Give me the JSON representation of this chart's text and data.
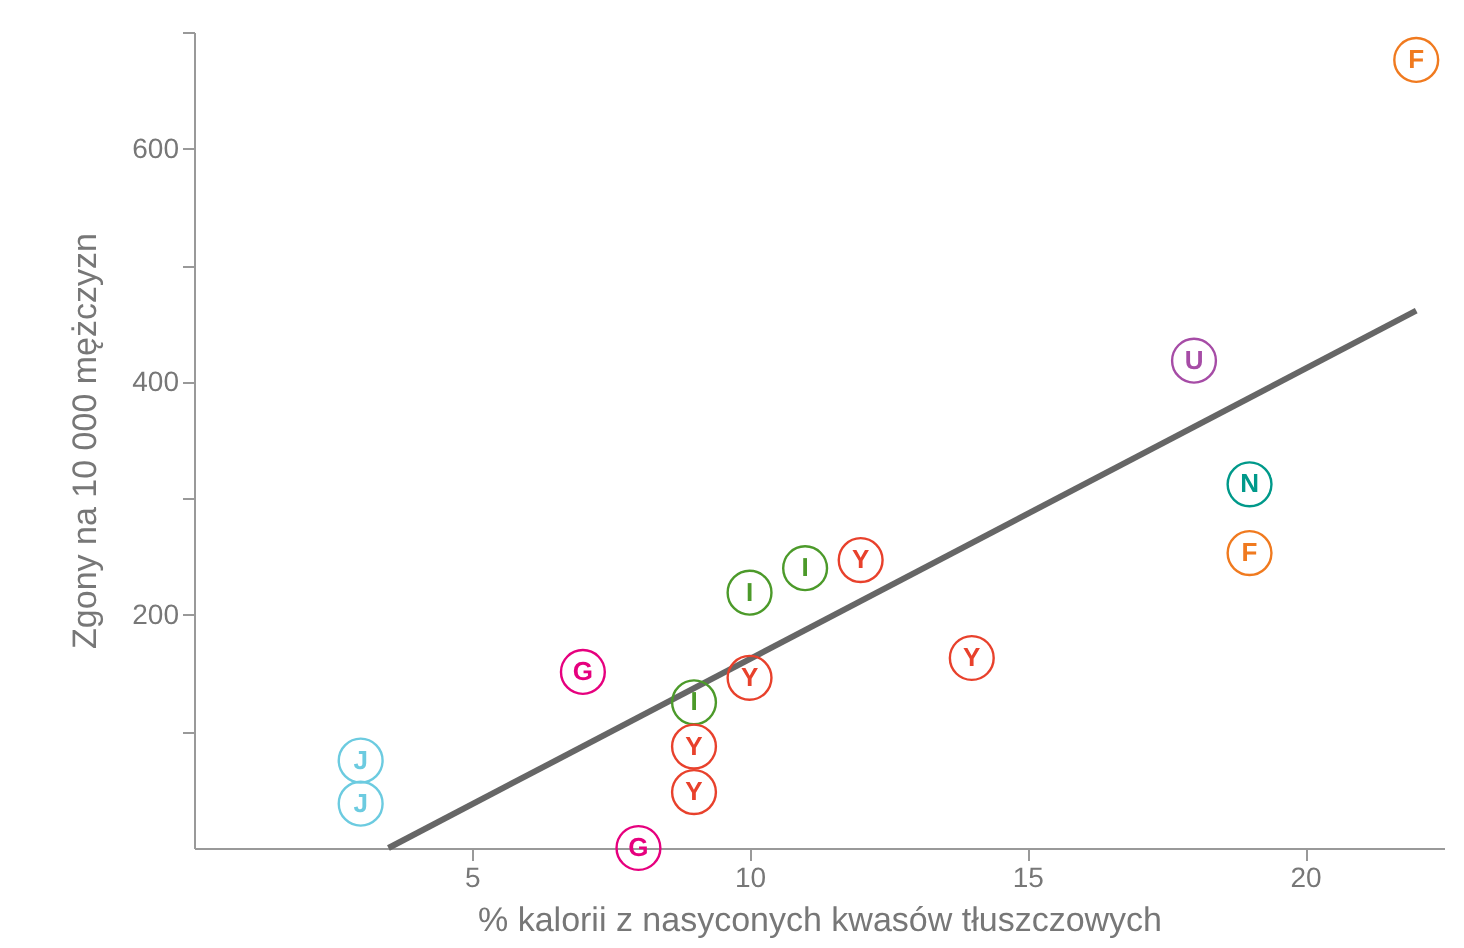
{
  "chart_data": {
    "type": "scatter",
    "xlabel": "% kalorii z nasyconych kwasów tłuszczowych",
    "ylabel": "Zgony na 10 000 mężczyzn",
    "xlim": [
      0,
      22.5
    ],
    "xticks": [
      5,
      10,
      15,
      20
    ],
    "ylim": [
      0,
      700
    ],
    "yticks": [
      {
        "value": 100,
        "label": null
      },
      200,
      {
        "value": 300,
        "label": null
      },
      400,
      {
        "value": 500,
        "label": null
      },
      600,
      {
        "value": 700,
        "label": null
      }
    ],
    "grid": false,
    "series": [
      {
        "name": "J",
        "color": "#6ccbe0",
        "x": [
          3,
          3
        ],
        "values": [
          75,
          38
        ]
      },
      {
        "name": "G",
        "color": "#e6007e",
        "x": [
          7,
          8
        ],
        "values": [
          151,
          0
        ]
      },
      {
        "name": "I",
        "color": "#4c9a2a",
        "x": [
          9,
          10,
          11
        ],
        "values": [
          125,
          219,
          240
        ]
      },
      {
        "name": "Y",
        "color": "#e8412c",
        "x": [
          9,
          9,
          10,
          12,
          14
        ],
        "values": [
          87,
          48,
          146,
          247,
          163
        ]
      },
      {
        "name": "U",
        "color": "#a64ca6",
        "x": [
          18
        ],
        "values": [
          418
        ]
      },
      {
        "name": "N",
        "color": "#00998a",
        "x": [
          19
        ],
        "values": [
          312
        ]
      },
      {
        "name": "F",
        "color": "#f07a1f",
        "x": [
          19,
          22
        ],
        "values": [
          253,
          676
        ]
      },
      {
        "type": "line",
        "color": "#666666",
        "x": [
          3.5,
          22
        ],
        "values": [
          0,
          461
        ]
      }
    ]
  }
}
